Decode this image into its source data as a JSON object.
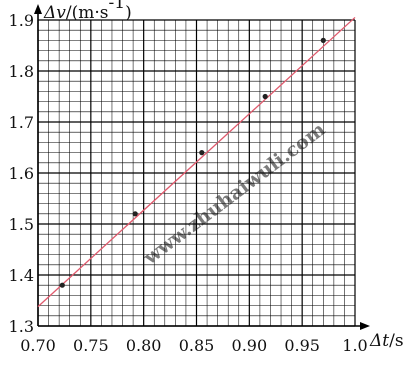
{
  "chart_data": {
    "type": "scatter",
    "xlabel_var": "Δt",
    "xlabel_unit": "/s",
    "ylabel_var": "Δv",
    "ylabel_unit": "/(m·s",
    "ylabel_unit_sup": "-1",
    "ylabel_unit_close": ")",
    "xlim": [
      0.7,
      1.0
    ],
    "ylim": [
      1.3,
      1.9
    ],
    "x_ticks": [
      "0.70",
      "0.75",
      "0.80",
      "0.85",
      "0.90",
      "0.95",
      "1.0"
    ],
    "y_ticks": [
      "1.3",
      "1.4",
      "1.5",
      "1.6",
      "1.7",
      "1.8",
      "1.9"
    ],
    "grid": true,
    "points": [
      {
        "x": 0.723,
        "y": 1.38
      },
      {
        "x": 0.792,
        "y": 1.52
      },
      {
        "x": 0.855,
        "y": 1.64
      },
      {
        "x": 0.915,
        "y": 1.75
      },
      {
        "x": 0.97,
        "y": 1.86
      }
    ],
    "fit_line": {
      "x1": 0.7,
      "y1": 1.338,
      "x2": 1.0,
      "y2": 1.905
    },
    "watermark": "www.zhuhaiwuli.com",
    "colors": {
      "grid": "#000000",
      "axis": "#000000",
      "fit_line": "#e05a6d",
      "points": "#222222",
      "watermark": "#2f6fd6"
    }
  }
}
